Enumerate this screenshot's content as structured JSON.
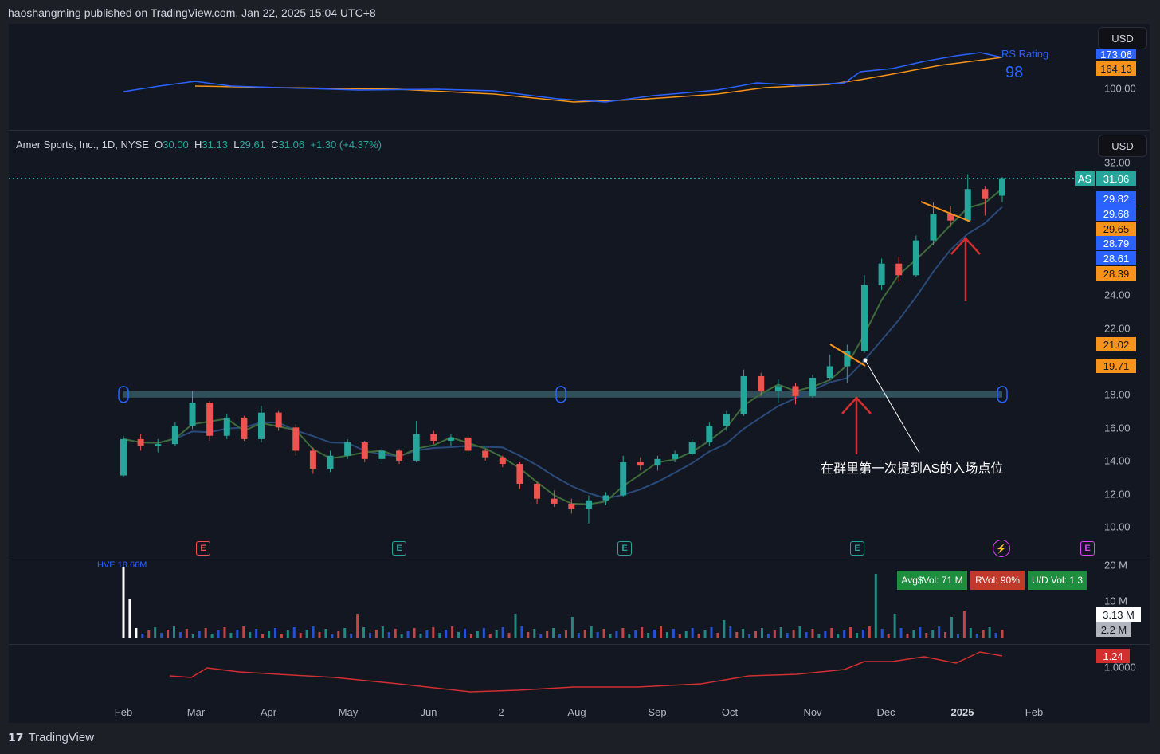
{
  "header": {
    "published_text": "haoshangming published on TradingView.com, Jan 22, 2025 15:04 UTC+8"
  },
  "footer": {
    "brand": "TradingView"
  },
  "rs_pane": {
    "currency_button": "USD",
    "indicator_name": "RS Rating",
    "rating_value": "98",
    "axis_labels": [
      "100.00"
    ],
    "price_tags": [
      {
        "text": "173.06",
        "style": "blue"
      },
      {
        "text": "164.13",
        "style": "orange"
      }
    ]
  },
  "main_pane": {
    "currency_button": "USD",
    "legend": {
      "symbol": "Amer Sports, Inc., 1D, NYSE",
      "open_key": "O",
      "open": "30.00",
      "high_key": "H",
      "high": "31.13",
      "low_key": "L",
      "low": "29.61",
      "close_key": "C",
      "close": "31.06",
      "change": "+1.30 (+4.37%)"
    },
    "axis_labels": [
      "32.00",
      "24.00",
      "22.00",
      "18.00",
      "16.00",
      "14.00",
      "12.00",
      "10.00"
    ],
    "symbol_tag": "AS",
    "price_tags": [
      {
        "text": "31.06",
        "style": "green"
      },
      {
        "text": "29.82",
        "style": "blue"
      },
      {
        "text": "29.68",
        "style": "blue"
      },
      {
        "text": "29.65",
        "style": "orange"
      },
      {
        "text": "28.79",
        "style": "blue"
      },
      {
        "text": "28.61",
        "style": "blue"
      },
      {
        "text": "28.39",
        "style": "orange"
      },
      {
        "text": "21.02",
        "style": "orange"
      },
      {
        "text": "19.71",
        "style": "orange"
      }
    ],
    "annotation": "在群里第一次提到AS的入场点位",
    "earnings_icon_label": "E"
  },
  "volume_pane": {
    "hve_label": "HVE 18.66M",
    "badges": {
      "avg_dollar_vol": "Avg$Vol: 71 M",
      "rvol": "RVol: 90%",
      "ud_vol": "U/D Vol: 1.3"
    },
    "axis_labels": [
      "20 M",
      "10 M"
    ],
    "price_tags": [
      {
        "text": "3.13 M",
        "style": "white"
      },
      {
        "text": "2.2 M",
        "style": "gray"
      }
    ]
  },
  "ratio_pane": {
    "axis_labels": [
      "1.0000"
    ],
    "price_tags": [
      {
        "text": "1.24",
        "style": "red"
      }
    ]
  },
  "time_axis": [
    "Feb",
    "Mar",
    "Apr",
    "May",
    "Jun",
    "2",
    "Aug",
    "Sep",
    "Oct",
    "Nov",
    "Dec",
    "2025",
    "Feb"
  ],
  "chart_data": {
    "type": "candlestick",
    "symbol": "AS",
    "ylim": [
      9,
      33
    ],
    "ohlc_weekly": [
      {
        "week": "2024-02-01",
        "o": 13.1,
        "h": 15.5,
        "l": 13.0,
        "c": 15.3
      },
      {
        "week": "2024-02-08",
        "o": 15.3,
        "h": 15.6,
        "l": 14.6,
        "c": 14.9
      },
      {
        "week": "2024-02-15",
        "o": 14.9,
        "h": 15.3,
        "l": 14.5,
        "c": 15.0
      },
      {
        "week": "2024-02-22",
        "o": 15.0,
        "h": 16.3,
        "l": 14.9,
        "c": 16.1
      },
      {
        "week": "2024-02-29",
        "o": 16.1,
        "h": 18.2,
        "l": 15.9,
        "c": 17.5
      },
      {
        "week": "2024-03-07",
        "o": 17.5,
        "h": 17.6,
        "l": 15.2,
        "c": 15.5
      },
      {
        "week": "2024-03-14",
        "o": 15.5,
        "h": 16.8,
        "l": 15.3,
        "c": 16.6
      },
      {
        "week": "2024-03-21",
        "o": 16.6,
        "h": 16.7,
        "l": 15.2,
        "c": 15.3
      },
      {
        "week": "2024-03-28",
        "o": 15.3,
        "h": 17.3,
        "l": 15.1,
        "c": 16.9
      },
      {
        "week": "2024-04-04",
        "o": 16.9,
        "h": 17.0,
        "l": 15.8,
        "c": 16.0
      },
      {
        "week": "2024-04-11",
        "o": 16.0,
        "h": 16.2,
        "l": 14.3,
        "c": 14.6
      },
      {
        "week": "2024-04-18",
        "o": 14.6,
        "h": 14.8,
        "l": 13.2,
        "c": 13.5
      },
      {
        "week": "2024-04-25",
        "o": 13.5,
        "h": 14.6,
        "l": 13.3,
        "c": 14.3
      },
      {
        "week": "2024-05-02",
        "o": 14.3,
        "h": 15.3,
        "l": 14.1,
        "c": 15.1
      },
      {
        "week": "2024-05-09",
        "o": 15.1,
        "h": 15.2,
        "l": 13.9,
        "c": 14.1
      },
      {
        "week": "2024-05-16",
        "o": 14.1,
        "h": 14.8,
        "l": 13.8,
        "c": 14.6
      },
      {
        "week": "2024-05-23",
        "o": 14.6,
        "h": 14.7,
        "l": 13.8,
        "c": 14.0
      },
      {
        "week": "2024-05-30",
        "o": 14.0,
        "h": 16.4,
        "l": 13.9,
        "c": 15.6
      },
      {
        "week": "2024-06-06",
        "o": 15.6,
        "h": 15.8,
        "l": 15.0,
        "c": 15.2
      },
      {
        "week": "2024-06-13",
        "o": 15.2,
        "h": 15.6,
        "l": 14.9,
        "c": 15.4
      },
      {
        "week": "2024-06-20",
        "o": 15.4,
        "h": 15.5,
        "l": 14.4,
        "c": 14.6
      },
      {
        "week": "2024-06-27",
        "o": 14.6,
        "h": 14.7,
        "l": 14.0,
        "c": 14.2
      },
      {
        "week": "2024-07-04",
        "o": 14.2,
        "h": 14.3,
        "l": 13.6,
        "c": 13.8
      },
      {
        "week": "2024-07-11",
        "o": 13.8,
        "h": 13.9,
        "l": 12.3,
        "c": 12.6
      },
      {
        "week": "2024-07-18",
        "o": 12.6,
        "h": 12.7,
        "l": 11.4,
        "c": 11.7
      },
      {
        "week": "2024-07-25",
        "o": 11.7,
        "h": 12.2,
        "l": 11.2,
        "c": 11.4
      },
      {
        "week": "2024-08-01",
        "o": 11.4,
        "h": 11.7,
        "l": 10.8,
        "c": 11.1
      },
      {
        "week": "2024-08-08",
        "o": 11.1,
        "h": 11.9,
        "l": 10.2,
        "c": 11.6
      },
      {
        "week": "2024-08-15",
        "o": 11.6,
        "h": 12.1,
        "l": 11.3,
        "c": 11.9
      },
      {
        "week": "2024-08-22",
        "o": 11.9,
        "h": 14.3,
        "l": 11.8,
        "c": 13.9
      },
      {
        "week": "2024-08-29",
        "o": 13.9,
        "h": 14.2,
        "l": 13.4,
        "c": 13.7
      },
      {
        "week": "2024-09-05",
        "o": 13.7,
        "h": 14.3,
        "l": 13.4,
        "c": 14.1
      },
      {
        "week": "2024-09-12",
        "o": 14.1,
        "h": 14.6,
        "l": 13.9,
        "c": 14.4
      },
      {
        "week": "2024-09-19",
        "o": 14.4,
        "h": 15.3,
        "l": 14.3,
        "c": 15.1
      },
      {
        "week": "2024-09-26",
        "o": 15.1,
        "h": 16.3,
        "l": 14.9,
        "c": 16.1
      },
      {
        "week": "2024-10-03",
        "o": 16.1,
        "h": 17.0,
        "l": 15.8,
        "c": 16.8
      },
      {
        "week": "2024-10-10",
        "o": 16.8,
        "h": 19.5,
        "l": 16.7,
        "c": 19.1
      },
      {
        "week": "2024-10-17",
        "o": 19.1,
        "h": 19.3,
        "l": 17.9,
        "c": 18.2
      },
      {
        "week": "2024-10-24",
        "o": 18.2,
        "h": 18.9,
        "l": 17.5,
        "c": 18.5
      },
      {
        "week": "2024-10-31",
        "o": 18.5,
        "h": 18.7,
        "l": 17.4,
        "c": 17.9
      },
      {
        "week": "2024-11-07",
        "o": 17.9,
        "h": 19.2,
        "l": 17.8,
        "c": 19.0
      },
      {
        "week": "2024-11-14",
        "o": 19.0,
        "h": 20.4,
        "l": 18.9,
        "c": 19.7
      },
      {
        "week": "2024-11-21",
        "o": 19.7,
        "h": 21.0,
        "l": 18.7,
        "c": 20.6
      },
      {
        "week": "2024-11-28",
        "o": 20.6,
        "h": 25.2,
        "l": 20.5,
        "c": 24.6
      },
      {
        "week": "2024-12-05",
        "o": 24.6,
        "h": 26.2,
        "l": 24.3,
        "c": 25.9
      },
      {
        "week": "2024-12-12",
        "o": 25.9,
        "h": 26.3,
        "l": 24.8,
        "c": 25.2
      },
      {
        "week": "2024-12-19",
        "o": 25.2,
        "h": 27.6,
        "l": 25.1,
        "c": 27.3
      },
      {
        "week": "2024-12-26",
        "o": 27.3,
        "h": 29.6,
        "l": 27.0,
        "c": 28.9
      },
      {
        "week": "2025-01-02",
        "o": 28.9,
        "h": 29.4,
        "l": 28.1,
        "c": 28.5
      },
      {
        "week": "2025-01-09",
        "o": 28.5,
        "h": 31.3,
        "l": 28.4,
        "c": 30.4
      },
      {
        "week": "2025-01-16",
        "o": 30.4,
        "h": 30.6,
        "l": 28.8,
        "c": 29.8
      },
      {
        "week": "2025-01-22",
        "o": 30.0,
        "h": 31.13,
        "l": 29.61,
        "c": 31.06
      }
    ],
    "support_level": 18.0,
    "colors": {
      "up": "#26a69a",
      "down": "#ef5350",
      "support": "#2f4f5a",
      "ma_blue": "#2962ff",
      "ma_orange": "#f7931a",
      "ratio": "#d32f2f"
    }
  }
}
